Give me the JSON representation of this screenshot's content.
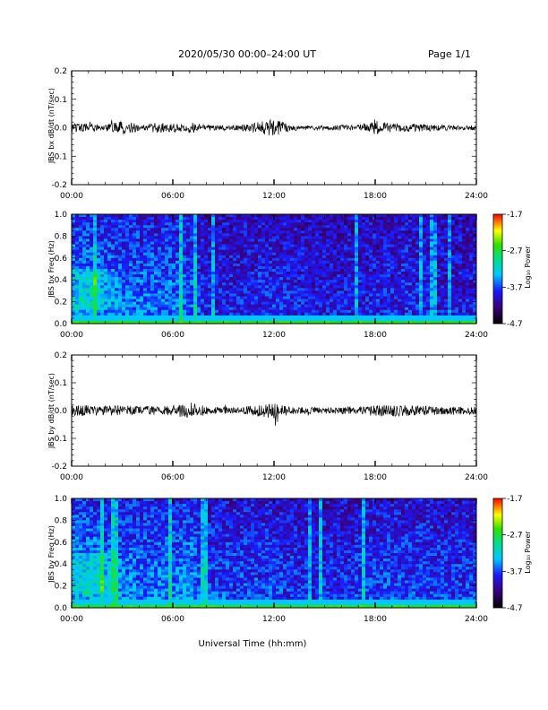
{
  "header": {
    "title": "2020/05/30  00:00–24:00 UT",
    "page": "Page 1/1"
  },
  "xlabel": "Universal Time (hh:mm)",
  "x_ticks": [
    "00:00",
    "06:00",
    "12:00",
    "18:00",
    "24:00"
  ],
  "chart_data": [
    {
      "type": "line",
      "ylabel": "JBS bx dB/dt (nT/sec)",
      "xlim": [
        0,
        24
      ],
      "ylim": [
        -0.2,
        0.2
      ],
      "y_ticks": [
        "0.2",
        "0.1",
        "0.0",
        "-0.1",
        "-0.2"
      ],
      "baseline": 0.0,
      "envelope_x_hours": [
        0,
        1,
        2,
        3,
        4,
        5,
        6,
        7,
        8,
        9,
        10,
        11,
        12,
        13,
        14,
        15,
        16,
        17,
        18,
        19,
        20,
        21,
        22,
        23,
        24
      ],
      "envelope_amplitude": [
        0.015,
        0.015,
        0.012,
        0.025,
        0.012,
        0.02,
        0.015,
        0.02,
        0.01,
        0.01,
        0.01,
        0.02,
        0.03,
        0.01,
        0.008,
        0.008,
        0.01,
        0.01,
        0.025,
        0.015,
        0.015,
        0.012,
        0.01,
        0.008,
        0.008
      ]
    },
    {
      "type": "heatmap",
      "ylabel": "JBS bx Freq (Hz)",
      "xlim": [
        0,
        24
      ],
      "ylim": [
        0.0,
        1.0
      ],
      "y_ticks": [
        "1.0",
        "0.8",
        "0.6",
        "0.4",
        "0.2",
        "0.0"
      ],
      "colorbar": {
        "label": "Log₁₀ Power",
        "ticks": [
          "-1.7",
          "-2.7",
          "-3.7",
          "-4.7"
        ],
        "range": [
          -4.7,
          -1.7
        ]
      },
      "activity_x_hours": [
        0,
        1,
        2,
        3,
        4,
        5,
        6,
        7,
        8,
        9,
        10,
        11,
        12,
        13,
        14,
        15,
        16,
        17,
        18,
        19,
        20,
        21,
        22,
        23,
        24
      ],
      "activity_level": [
        0.8,
        0.75,
        0.65,
        0.65,
        0.6,
        0.6,
        0.6,
        0.6,
        0.3,
        0.3,
        0.3,
        0.35,
        0.35,
        0.3,
        0.25,
        0.25,
        0.25,
        0.25,
        0.3,
        0.3,
        0.35,
        0.3,
        0.25,
        0.25,
        0.25
      ]
    },
    {
      "type": "line",
      "ylabel": "JBS by dB/dt (nT/sec)",
      "xlim": [
        0,
        24
      ],
      "ylim": [
        -0.2,
        0.2
      ],
      "y_ticks": [
        "0.2",
        "0.1",
        "0.0",
        "-0.1",
        "-0.2"
      ],
      "baseline": 0.0,
      "envelope_x_hours": [
        0,
        1,
        2,
        3,
        4,
        5,
        6,
        7,
        8,
        9,
        10,
        11,
        12,
        13,
        14,
        15,
        16,
        17,
        18,
        19,
        20,
        21,
        22,
        23,
        24
      ],
      "envelope_amplitude": [
        0.02,
        0.02,
        0.018,
        0.02,
        0.015,
        0.015,
        0.018,
        0.03,
        0.015,
        0.012,
        0.012,
        0.02,
        0.03,
        0.015,
        0.012,
        0.012,
        0.012,
        0.015,
        0.02,
        0.02,
        0.02,
        0.018,
        0.015,
        0.015,
        0.015
      ]
    },
    {
      "type": "heatmap",
      "ylabel": "JBS by Freq (Hz)",
      "xlim": [
        0,
        24
      ],
      "ylim": [
        0.0,
        1.0
      ],
      "y_ticks": [
        "1.0",
        "0.8",
        "0.6",
        "0.4",
        "0.2",
        "0.0"
      ],
      "colorbar": {
        "label": "Log₁₀ Power",
        "ticks": [
          "-1.7",
          "-2.7",
          "-3.7",
          "-4.7"
        ],
        "range": [
          -4.7,
          -1.7
        ]
      },
      "activity_x_hours": [
        0,
        1,
        2,
        3,
        4,
        5,
        6,
        7,
        8,
        9,
        10,
        11,
        12,
        13,
        14,
        15,
        16,
        17,
        18,
        19,
        20,
        21,
        22,
        23,
        24
      ],
      "activity_level": [
        0.85,
        0.8,
        0.7,
        0.7,
        0.65,
        0.65,
        0.65,
        0.75,
        0.45,
        0.45,
        0.45,
        0.45,
        0.45,
        0.4,
        0.35,
        0.35,
        0.35,
        0.4,
        0.45,
        0.45,
        0.45,
        0.45,
        0.4,
        0.4,
        0.4
      ]
    }
  ]
}
